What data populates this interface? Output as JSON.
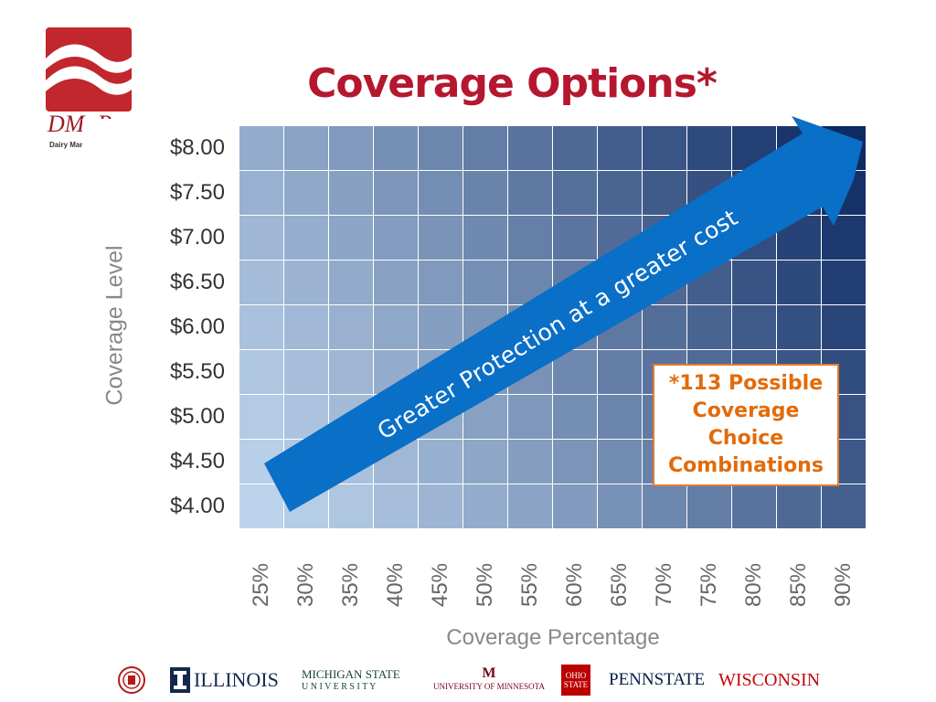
{
  "title": "Coverage Options*",
  "logo": {
    "text": "DM~P",
    "subtitle": "Dairy Marke"
  },
  "chart_data": {
    "type": "heatmap",
    "title": "Coverage Options*",
    "xlabel": "Coverage Percentage",
    "ylabel": "Coverage Level",
    "x": [
      "25%",
      "30%",
      "35%",
      "40%",
      "45%",
      "50%",
      "55%",
      "60%",
      "65%",
      "70%",
      "75%",
      "80%",
      "85%",
      "90%"
    ],
    "y": [
      "$8.00",
      "$7.50",
      "$7.00",
      "$6.50",
      "$6.00",
      "$5.50",
      "$5.00",
      "$4.50",
      "$4.00"
    ],
    "color_low": "#bcd3eb",
    "color_high": "#0e2a63",
    "arrow_label": "Greater Protection at a greater cost",
    "annotation": [
      "*113 Possible",
      "Coverage",
      "Choice",
      "Combinations"
    ]
  },
  "colors": {
    "title": "#b5172f",
    "arrow": "#0a6fc6",
    "annotation": "#e26b0a"
  },
  "footer": {
    "logos": [
      "ILLINOIS",
      "MICHIGAN STATE",
      "U N I V E R S I T Y",
      "UNIVERSITY OF MINNESOTA",
      "OHIO STATE",
      "PENNSTATE",
      "WISCONSIN"
    ]
  }
}
